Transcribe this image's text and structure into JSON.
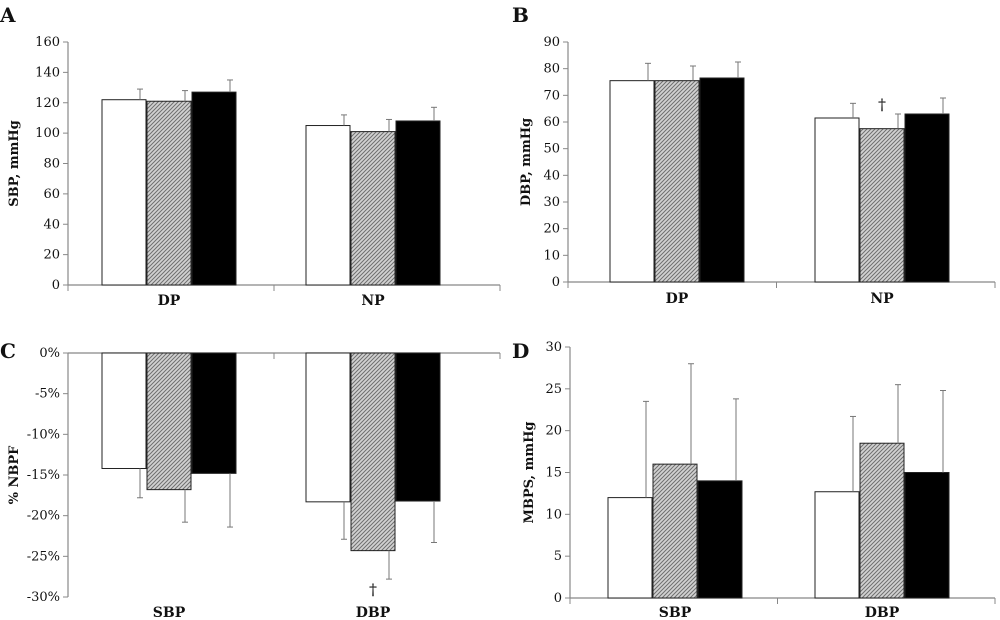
{
  "colors": {
    "series_fills": [
      "#ffffff",
      "hatch-gray",
      "#000000"
    ]
  },
  "chart_data": [
    {
      "panel": "A",
      "type": "bar",
      "ylabel": "SBP, mmHg",
      "categories": [
        "DP",
        "NP"
      ],
      "ylim": [
        0,
        160
      ],
      "yticks": [
        0,
        20,
        40,
        60,
        80,
        100,
        120,
        140,
        160
      ],
      "ytick_labels": [
        "0",
        "20",
        "40",
        "60",
        "80",
        "100",
        "120",
        "140",
        "160"
      ],
      "series": [
        {
          "values": [
            122,
            105
          ],
          "errors": [
            7,
            7
          ]
        },
        {
          "values": [
            121,
            101
          ],
          "errors": [
            7,
            8
          ]
        },
        {
          "values": [
            127,
            108
          ],
          "errors": [
            8,
            9
          ]
        }
      ],
      "annotations": []
    },
    {
      "panel": "B",
      "type": "bar",
      "ylabel": "DBP, mmHg",
      "categories": [
        "DP",
        "NP"
      ],
      "ylim": [
        0,
        90
      ],
      "yticks": [
        0,
        10,
        20,
        30,
        40,
        50,
        60,
        70,
        80,
        90
      ],
      "ytick_labels": [
        "0",
        "10",
        "20",
        "30",
        "40",
        "50",
        "60",
        "70",
        "80",
        "90"
      ],
      "series": [
        {
          "values": [
            75.5,
            61.5
          ],
          "errors": [
            6.5,
            5.5
          ]
        },
        {
          "values": [
            75.5,
            57.5
          ],
          "errors": [
            5.5,
            5.5
          ]
        },
        {
          "values": [
            76.5,
            63
          ],
          "errors": [
            6,
            6
          ]
        }
      ],
      "annotations": [
        {
          "text": "†",
          "category": 1,
          "series": 1
        }
      ]
    },
    {
      "panel": "C",
      "type": "bar",
      "ylabel": "% NBPF",
      "categories": [
        "SBP",
        "DBP"
      ],
      "ylim": [
        -30,
        0
      ],
      "yticks": [
        0,
        -5,
        -10,
        -15,
        -20,
        -25,
        -30
      ],
      "ytick_labels": [
        "0%",
        "-5%",
        "-10%",
        "-15%",
        "-20%",
        "-25%",
        "-30%"
      ],
      "series": [
        {
          "values": [
            -14.2,
            -18.3
          ],
          "errors": [
            3.6,
            4.6
          ]
        },
        {
          "values": [
            -16.8,
            -24.3
          ],
          "errors": [
            4,
            3.5
          ]
        },
        {
          "values": [
            -14.8,
            -18.2
          ],
          "errors": [
            6.6,
            5.1
          ]
        }
      ],
      "annotations": [
        {
          "text": "†",
          "category": 1,
          "series": 1
        }
      ]
    },
    {
      "panel": "D",
      "type": "bar",
      "ylabel": "MBPS, mmHg",
      "categories": [
        "SBP",
        "DBP"
      ],
      "ylim": [
        0,
        30
      ],
      "yticks": [
        0,
        5,
        10,
        15,
        20,
        25,
        30
      ],
      "ytick_labels": [
        "0",
        "5",
        "10",
        "15",
        "20",
        "25",
        "30"
      ],
      "series": [
        {
          "values": [
            12,
            12.7
          ],
          "errors": [
            11.5,
            9
          ]
        },
        {
          "values": [
            16,
            18.5
          ],
          "errors": [
            12,
            7
          ]
        },
        {
          "values": [
            14,
            15
          ],
          "errors": [
            9.8,
            9.8
          ]
        }
      ],
      "annotations": []
    }
  ]
}
